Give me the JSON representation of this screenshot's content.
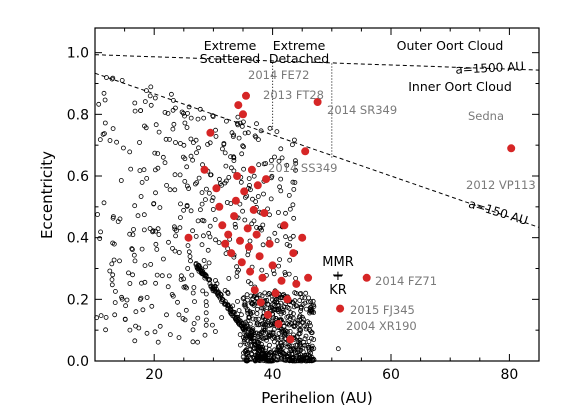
{
  "chart_data": {
    "type": "scatter",
    "title": "",
    "xlabel": "Perihelion (AU)",
    "ylabel": "Eccentricity",
    "xlim": [
      10,
      85
    ],
    "ylim": [
      0.0,
      1.08
    ],
    "xticks": [
      20,
      40,
      60,
      80
    ],
    "yticks": [
      0.0,
      0.2,
      0.4,
      0.6,
      0.8,
      1.0
    ],
    "grid": false,
    "colors": {
      "highlight": "#d62626",
      "open": "#000000",
      "label_grey": "#7a7a7a"
    },
    "region_labels": {
      "extreme_scattered": [
        "Extreme",
        "Scattered"
      ],
      "extreme_detached": [
        "Extreme",
        "Detached"
      ],
      "outer_oort": "Outer Oort Cloud",
      "inner_oort": "Inner Oort Cloud",
      "mmr_kr": [
        "MMR",
        "+",
        "KR"
      ]
    },
    "reference_curves": [
      {
        "label": "a=1500 AU",
        "a": 1500
      },
      {
        "label": "a=150 AU",
        "a": 150
      }
    ],
    "boundary_lines": [
      {
        "x": 40,
        "y_from": 0.75,
        "y_to": 0.97
      },
      {
        "x": 50,
        "y_from": 0.66,
        "y_to": 0.97
      }
    ],
    "named_objects": [
      {
        "name": "2014 FE72",
        "x": 36.3,
        "y": 0.98,
        "red": false
      },
      {
        "name": "2013 FT28",
        "x": 43.5,
        "y": 0.86,
        "red": false
      },
      {
        "name": "2014 SR349",
        "x": 47.6,
        "y": 0.84,
        "red": true
      },
      {
        "name": "Sedna",
        "x": 76.2,
        "y": 0.85,
        "red": false
      },
      {
        "name": "2014 SS349",
        "x": 45.5,
        "y": 0.68,
        "red": true
      },
      {
        "name": "2012 VP113",
        "x": 80.3,
        "y": 0.69,
        "red": true
      },
      {
        "name": "2014 FZ71",
        "x": 55.9,
        "y": 0.27,
        "red": true
      },
      {
        "name": "2015 FJ345",
        "x": 51.4,
        "y": 0.17,
        "red": true
      },
      {
        "name": "2004 XR190",
        "x": 51.1,
        "y": 0.04,
        "red": false
      }
    ],
    "red_points": [
      [
        25.8,
        0.4
      ],
      [
        28.5,
        0.62
      ],
      [
        29.5,
        0.74
      ],
      [
        30.5,
        0.56
      ],
      [
        31.0,
        0.5
      ],
      [
        31.5,
        0.44
      ],
      [
        32.0,
        0.38
      ],
      [
        32.5,
        0.41
      ],
      [
        33.0,
        0.35
      ],
      [
        33.5,
        0.47
      ],
      [
        33.8,
        0.52
      ],
      [
        34.0,
        0.6
      ],
      [
        34.2,
        0.83
      ],
      [
        34.5,
        0.39
      ],
      [
        34.8,
        0.32
      ],
      [
        35.0,
        0.8
      ],
      [
        35.2,
        0.55
      ],
      [
        35.5,
        0.86
      ],
      [
        35.8,
        0.43
      ],
      [
        36.0,
        0.37
      ],
      [
        36.2,
        0.29
      ],
      [
        36.5,
        0.62
      ],
      [
        36.8,
        0.49
      ],
      [
        37.0,
        0.23
      ],
      [
        37.3,
        0.41
      ],
      [
        37.5,
        0.57
      ],
      [
        37.8,
        0.34
      ],
      [
        38.0,
        0.19
      ],
      [
        38.3,
        0.27
      ],
      [
        38.6,
        0.48
      ],
      [
        38.9,
        0.59
      ],
      [
        39.2,
        0.15
      ],
      [
        39.5,
        0.38
      ],
      [
        40.0,
        0.31
      ],
      [
        40.5,
        0.22
      ],
      [
        41.0,
        0.12
      ],
      [
        41.5,
        0.26
      ],
      [
        42.0,
        0.44
      ],
      [
        42.5,
        0.2
      ],
      [
        43.0,
        0.07
      ],
      [
        43.5,
        0.35
      ],
      [
        44.0,
        0.25
      ],
      [
        45.0,
        0.4
      ],
      [
        46.0,
        0.27
      ]
    ],
    "open_point_generator": {
      "scattered_n": 560,
      "scattered_q": [
        10,
        44
      ],
      "scattered_e": [
        0.05,
        0.99
      ],
      "classical_n": 520,
      "classical_q": [
        35,
        47
      ],
      "classical_e": [
        0.0,
        0.22
      ],
      "resonant_n": 160,
      "resonant_q": [
        27,
        40
      ],
      "seed": 17
    }
  }
}
